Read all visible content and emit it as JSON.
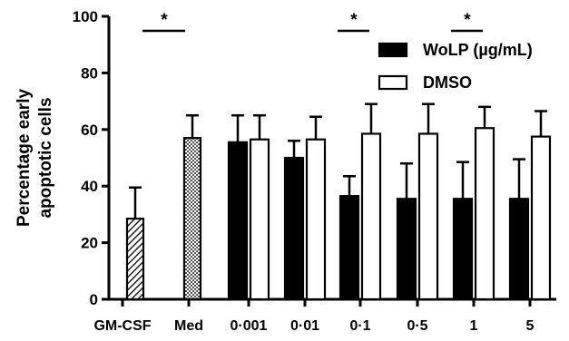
{
  "chart_data": {
    "type": "bar",
    "title": "",
    "xlabel": "",
    "ylabel_lines": [
      "Percentage early",
      "apoptotic cells"
    ],
    "ylim": [
      0,
      100
    ],
    "yticks": [
      0,
      20,
      40,
      60,
      80,
      100
    ],
    "grid": false,
    "legend_position": "top-right",
    "categories": [
      "GM-CSF",
      "Med",
      "0·001",
      "0·01",
      "0·1",
      "0·5",
      "1",
      "5"
    ],
    "controls": [
      {
        "category": "GM-CSF",
        "value": 28.5,
        "error": 11,
        "pattern": "diagonal-hatch"
      },
      {
        "category": "Med",
        "value": 57,
        "error": 8,
        "pattern": "checker"
      }
    ],
    "series": [
      {
        "name": "WoLP (µg/mL)",
        "fill": "#000000",
        "values": [
          null,
          null,
          55.5,
          50,
          36.5,
          35.5,
          35.5,
          35.5
        ],
        "errors": [
          null,
          null,
          9.5,
          6,
          7,
          12.5,
          13,
          14
        ]
      },
      {
        "name": "DMSO",
        "fill": "#ffffff",
        "values": [
          null,
          null,
          56.5,
          56.5,
          58.5,
          58.5,
          60.5,
          57.5
        ],
        "errors": [
          null,
          null,
          8.5,
          8,
          10.5,
          10.5,
          7.5,
          9
        ]
      }
    ],
    "significance": [
      {
        "between": [
          "GM-CSF",
          "Med"
        ],
        "label": "*"
      },
      {
        "category": "0·1",
        "label": "*"
      },
      {
        "category": "1",
        "label": "*"
      }
    ]
  }
}
